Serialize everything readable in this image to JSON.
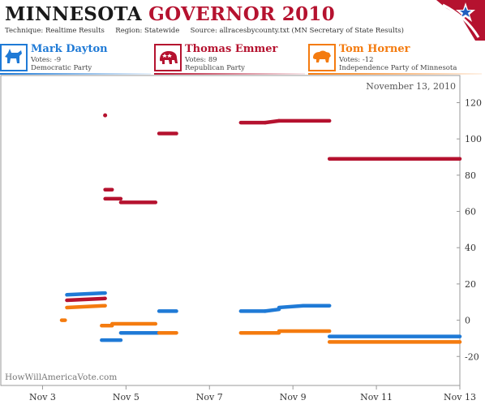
{
  "header": {
    "title_part1": "MINNESOTA",
    "title_part2": "GOVERNOR 2010",
    "technique_label": "Technique:",
    "technique_value": "Realtime Results",
    "region_label": "Region:",
    "region_value": "Statewide",
    "source_label": "Source:",
    "source_value": "allracesbycounty.txt (MN Secretary  of State Results)"
  },
  "candidates": [
    {
      "name": "Mark Dayton",
      "votes": "Votes: -9",
      "party": "Democratic Party",
      "color": "#1f7ad6",
      "icon": "donkey-icon"
    },
    {
      "name": "Thomas Emmer",
      "votes": "Votes: 89",
      "party": "Republican Party",
      "color": "#b5122f",
      "icon": "elephant-icon"
    },
    {
      "name": "Tom Horner",
      "votes": "Votes: -12",
      "party": "Independence Party of Minnesota",
      "color": "#f47b0f",
      "icon": "bison-icon"
    }
  ],
  "chart_data": {
    "type": "scatter",
    "date_label": "November 13, 2010",
    "watermark": "HowWillAmericaVote.com",
    "x_ticks": [
      "Nov 3",
      "Nov 5",
      "Nov 7",
      "Nov 9",
      "Nov 11",
      "Nov 13"
    ],
    "x_range": [
      "2010-11-02",
      "2010-11-13"
    ],
    "ylim": [
      -36,
      135
    ],
    "y_ticks": [
      -20,
      0,
      20,
      40,
      60,
      80,
      100,
      120
    ],
    "series": [
      {
        "name": "Mark Dayton",
        "color": "#1f7ad6",
        "segments": [
          {
            "start": "2010-11-03 14:00",
            "end": "2010-11-04 12:00",
            "values": [
              14,
              15
            ]
          },
          {
            "start": "2010-11-04 10:00",
            "end": "2010-11-04 21:00",
            "values": [
              -11,
              -11
            ]
          },
          {
            "start": "2010-11-04 21:00",
            "end": "2010-11-05 21:00",
            "values": [
              -7,
              -7
            ]
          },
          {
            "start": "2010-11-05 19:00",
            "end": "2010-11-06 05:00",
            "values": [
              5,
              5
            ]
          },
          {
            "start": "2010-11-07 18:00",
            "end": "2010-11-08 08:00",
            "values": [
              5,
              5
            ]
          },
          {
            "start": "2010-11-08 08:00",
            "end": "2010-11-08 16:00",
            "values": [
              5,
              6
            ]
          },
          {
            "start": "2010-11-08 16:00",
            "end": "2010-11-09 06:00",
            "values": [
              7,
              8
            ]
          },
          {
            "start": "2010-11-09 06:00",
            "end": "2010-11-09 21:00",
            "values": [
              8,
              8
            ]
          },
          {
            "start": "2010-11-09 21:00",
            "end": "2010-11-13 00:00",
            "values": [
              -9,
              -9
            ]
          }
        ]
      },
      {
        "name": "Thomas Emmer",
        "color": "#b5122f",
        "segments": [
          {
            "start": "2010-11-03 14:00",
            "end": "2010-11-04 12:00",
            "values": [
              11,
              12
            ]
          },
          {
            "start": "2010-11-04 12:00",
            "end": "2010-11-04 12:00",
            "values": [
              113,
              113
            ]
          },
          {
            "start": "2010-11-04 12:00",
            "end": "2010-11-04 16:00",
            "values": [
              72,
              72
            ]
          },
          {
            "start": "2010-11-04 12:00",
            "end": "2010-11-04 21:00",
            "values": [
              67,
              67
            ]
          },
          {
            "start": "2010-11-04 21:00",
            "end": "2010-11-05 17:00",
            "values": [
              65,
              65
            ]
          },
          {
            "start": "2010-11-05 19:00",
            "end": "2010-11-06 05:00",
            "values": [
              103,
              103
            ]
          },
          {
            "start": "2010-11-07 18:00",
            "end": "2010-11-08 08:00",
            "values": [
              109,
              109
            ]
          },
          {
            "start": "2010-11-08 08:00",
            "end": "2010-11-08 16:00",
            "values": [
              109,
              110
            ]
          },
          {
            "start": "2010-11-08 16:00",
            "end": "2010-11-09 21:00",
            "values": [
              110,
              110
            ]
          },
          {
            "start": "2010-11-09 21:00",
            "end": "2010-11-13 00:00",
            "values": [
              89,
              89
            ]
          }
        ]
      },
      {
        "name": "Tom Horner",
        "color": "#f47b0f",
        "segments": [
          {
            "start": "2010-11-03 11:00",
            "end": "2010-11-03 13:00",
            "values": [
              0,
              0
            ]
          },
          {
            "start": "2010-11-03 14:00",
            "end": "2010-11-04 12:00",
            "values": [
              7,
              8
            ]
          },
          {
            "start": "2010-11-04 10:00",
            "end": "2010-11-04 16:00",
            "values": [
              -3,
              -3
            ]
          },
          {
            "start": "2010-11-04 16:00",
            "end": "2010-11-05 17:00",
            "values": [
              -2,
              -2
            ]
          },
          {
            "start": "2010-11-05 19:00",
            "end": "2010-11-06 05:00",
            "values": [
              -7,
              -7
            ]
          },
          {
            "start": "2010-11-07 18:00",
            "end": "2010-11-08 08:00",
            "values": [
              -7,
              -7
            ]
          },
          {
            "start": "2010-11-08 08:00",
            "end": "2010-11-08 16:00",
            "values": [
              -7,
              -7
            ]
          },
          {
            "start": "2010-11-08 16:00",
            "end": "2010-11-09 21:00",
            "values": [
              -6,
              -6
            ]
          },
          {
            "start": "2010-11-09 21:00",
            "end": "2010-11-13 00:00",
            "values": [
              -12,
              -12
            ]
          }
        ]
      }
    ]
  }
}
